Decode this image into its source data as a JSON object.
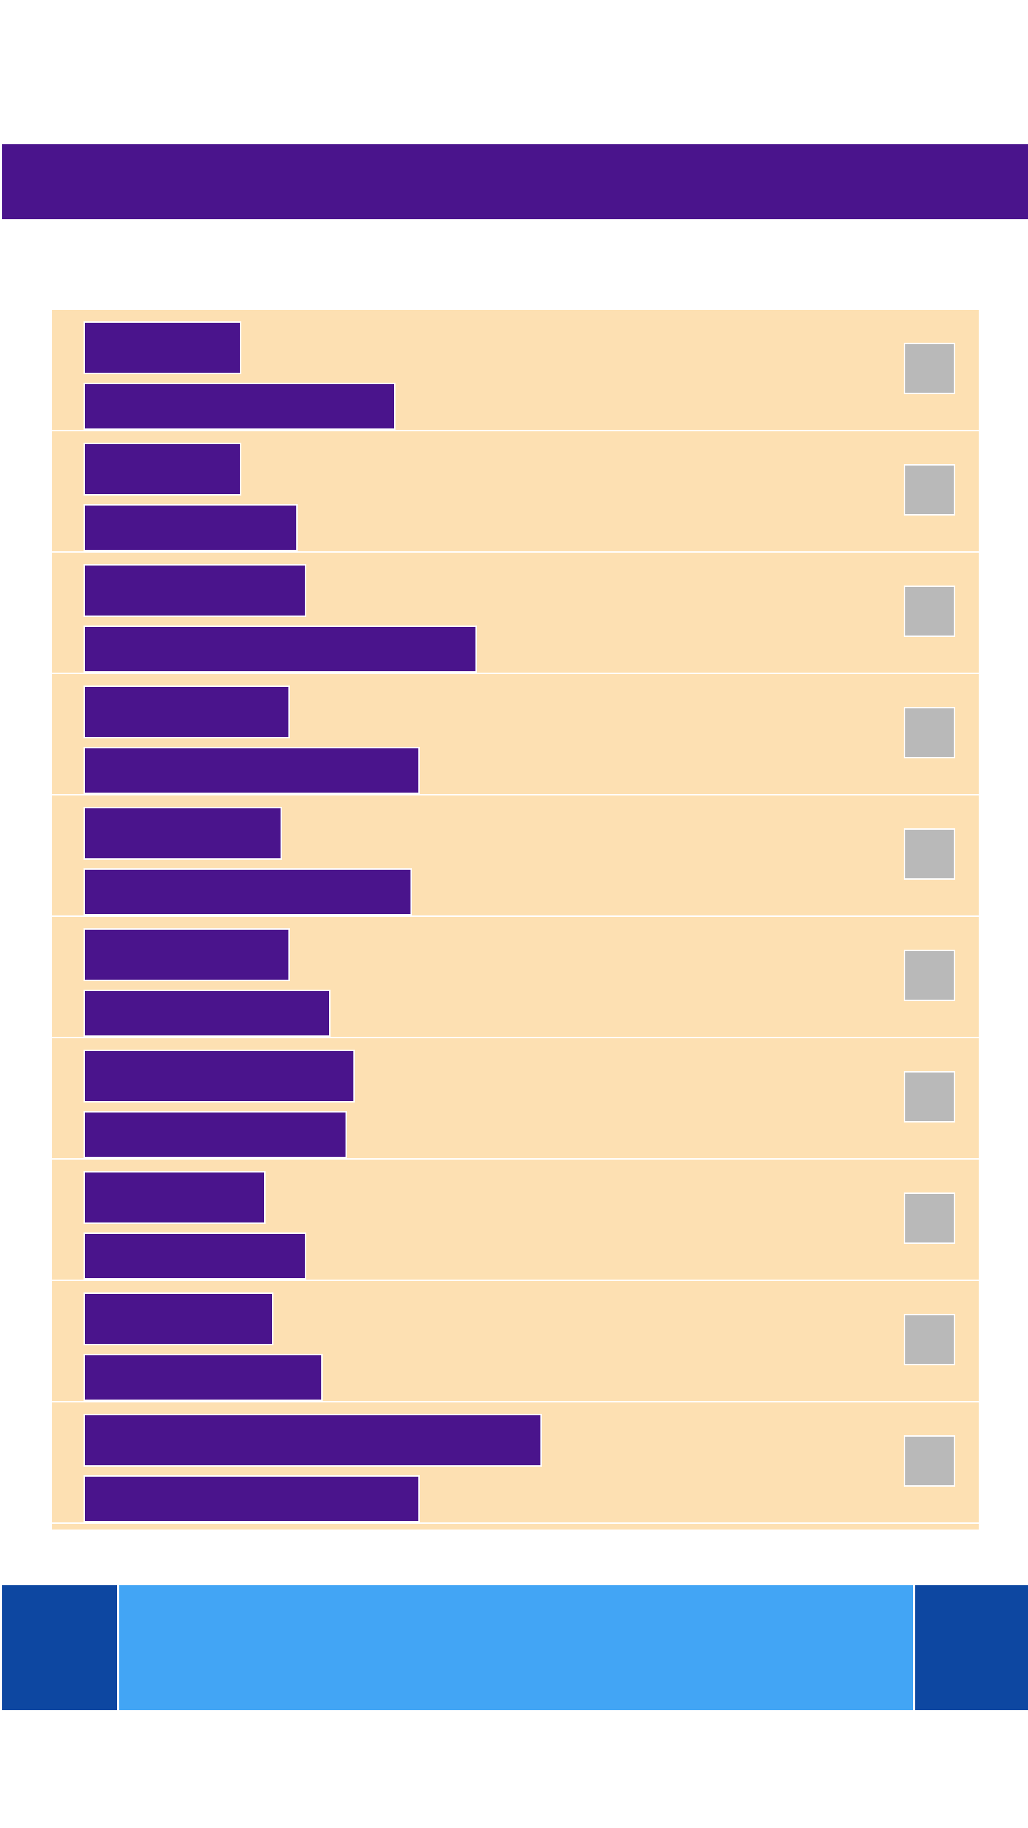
{
  "header": {
    "title": ""
  },
  "list": {
    "rows": [
      {
        "primary": "",
        "secondary": "",
        "primary_fill": 0.19,
        "secondary_fill": 0.38
      },
      {
        "primary": "",
        "secondary": "",
        "primary_fill": 0.19,
        "secondary_fill": 0.26
      },
      {
        "primary": "",
        "secondary": "",
        "primary_fill": 0.27,
        "secondary_fill": 0.48
      },
      {
        "primary": "",
        "secondary": "",
        "primary_fill": 0.25,
        "secondary_fill": 0.41
      },
      {
        "primary": "",
        "secondary": "",
        "primary_fill": 0.24,
        "secondary_fill": 0.4
      },
      {
        "primary": "",
        "secondary": "",
        "primary_fill": 0.25,
        "secondary_fill": 0.3
      },
      {
        "primary": "",
        "secondary": "",
        "primary_fill": 0.33,
        "secondary_fill": 0.32
      },
      {
        "primary": "",
        "secondary": "",
        "primary_fill": 0.22,
        "secondary_fill": 0.27
      },
      {
        "primary": "",
        "secondary": "",
        "primary_fill": 0.23,
        "secondary_fill": 0.29
      },
      {
        "primary": "",
        "secondary": "",
        "primary_fill": 0.56,
        "secondary_fill": 0.41
      }
    ]
  },
  "bottom_nav": {
    "left_label": "",
    "center_label": "",
    "right_label": ""
  },
  "colors": {
    "primary": "#4a148c",
    "list_background": "#fde0b2",
    "checkbox": "#b9b9b9",
    "bottom_dark": "#0d47a1",
    "bottom_light": "#42a5f5"
  }
}
